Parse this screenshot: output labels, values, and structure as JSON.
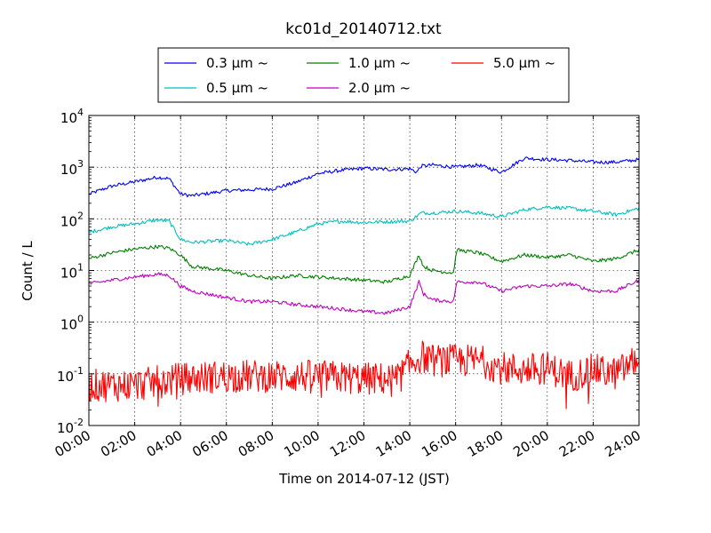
{
  "chart_data": {
    "type": "line",
    "title": "kc01d_20140712.txt",
    "xlabel": "Time on 2014-07-12 (JST)",
    "ylabel": "Count / L",
    "y_scale": "log",
    "ylim_exponents": [
      -2,
      4
    ],
    "xlim_hours": [
      0,
      24
    ],
    "grid": true,
    "legend_placement": "top-center",
    "x_tick_labels": [
      "00:00",
      "02:00",
      "04:00",
      "06:00",
      "08:00",
      "10:00",
      "12:00",
      "14:00",
      "16:00",
      "18:00",
      "20:00",
      "22:00",
      "24:00"
    ],
    "y_tick_base": "10",
    "y_tick_exponents": [
      "-2",
      "-1",
      "0",
      "1",
      "2",
      "3",
      "4"
    ],
    "series": [
      {
        "name": "0.3 μm ~",
        "color": "#0000ff",
        "x": [
          0,
          1,
          2,
          3,
          3.5,
          4,
          4.5,
          6,
          8,
          9,
          10,
          11,
          12,
          13,
          14,
          14.3,
          14.5,
          15,
          16,
          17,
          18,
          19,
          20,
          21,
          22,
          23,
          24
        ],
        "y": [
          300,
          430,
          520,
          640,
          600,
          300,
          280,
          350,
          380,
          500,
          750,
          870,
          950,
          900,
          930,
          800,
          1050,
          1100,
          1000,
          1100,
          800,
          1500,
          1400,
          1350,
          1250,
          1250,
          1400
        ]
      },
      {
        "name": "0.5 μm ~",
        "color": "#00bfbf",
        "x": [
          0,
          1,
          2,
          3,
          3.5,
          4,
          4.5,
          6,
          7,
          8,
          9,
          10,
          11,
          12,
          13,
          14,
          14.5,
          15,
          16,
          17,
          18,
          19,
          20,
          21,
          22,
          23,
          24
        ],
        "y": [
          55,
          70,
          80,
          95,
          90,
          40,
          35,
          38,
          32,
          40,
          55,
          80,
          90,
          85,
          88,
          90,
          130,
          130,
          140,
          130,
          110,
          150,
          170,
          160,
          140,
          120,
          160
        ]
      },
      {
        "name": "1.0 μm ~",
        "color": "#008000",
        "x": [
          0,
          1,
          2,
          3,
          3.5,
          4,
          4.5,
          6,
          7,
          8,
          9,
          10,
          11,
          12,
          13,
          14,
          14.4,
          14.6,
          15,
          15.9,
          16.05,
          17,
          18,
          19,
          20,
          21,
          22,
          23,
          24
        ],
        "y": [
          17,
          22,
          26,
          29,
          27,
          20,
          12,
          10,
          8,
          7,
          8,
          7.5,
          7,
          6.5,
          6,
          8,
          20,
          12,
          10,
          9,
          25,
          22,
          15,
          20,
          18,
          20,
          15,
          17,
          25
        ]
      },
      {
        "name": "2.0 μm ~",
        "color": "#bf00bf",
        "x": [
          0,
          1,
          2,
          3,
          3.5,
          4,
          4.5,
          6,
          7,
          8,
          9,
          10,
          11,
          12,
          13,
          14,
          14.4,
          14.6,
          15,
          15.9,
          16.05,
          17,
          18,
          19,
          20,
          21,
          22,
          23,
          24
        ],
        "y": [
          5.5,
          6.5,
          7.5,
          8.5,
          8,
          5,
          4,
          3,
          2.5,
          2.5,
          2.2,
          2,
          1.8,
          1.6,
          1.5,
          2,
          6,
          3.5,
          2.7,
          2.5,
          6,
          6,
          4,
          5,
          5,
          5.5,
          4,
          4,
          6.5
        ]
      },
      {
        "name": "5.0 μm ~",
        "color": "#ff0000",
        "x": [
          0,
          2,
          4,
          6,
          8,
          10,
          12,
          13.5,
          14,
          14.5,
          15,
          16,
          17,
          18,
          19,
          20,
          21,
          22,
          23,
          24
        ],
        "y": [
          0.06,
          0.06,
          0.08,
          0.09,
          0.09,
          0.09,
          0.08,
          0.08,
          0.15,
          0.22,
          0.18,
          0.18,
          0.18,
          0.13,
          0.12,
          0.13,
          0.09,
          0.12,
          0.1,
          0.2
        ]
      }
    ]
  }
}
